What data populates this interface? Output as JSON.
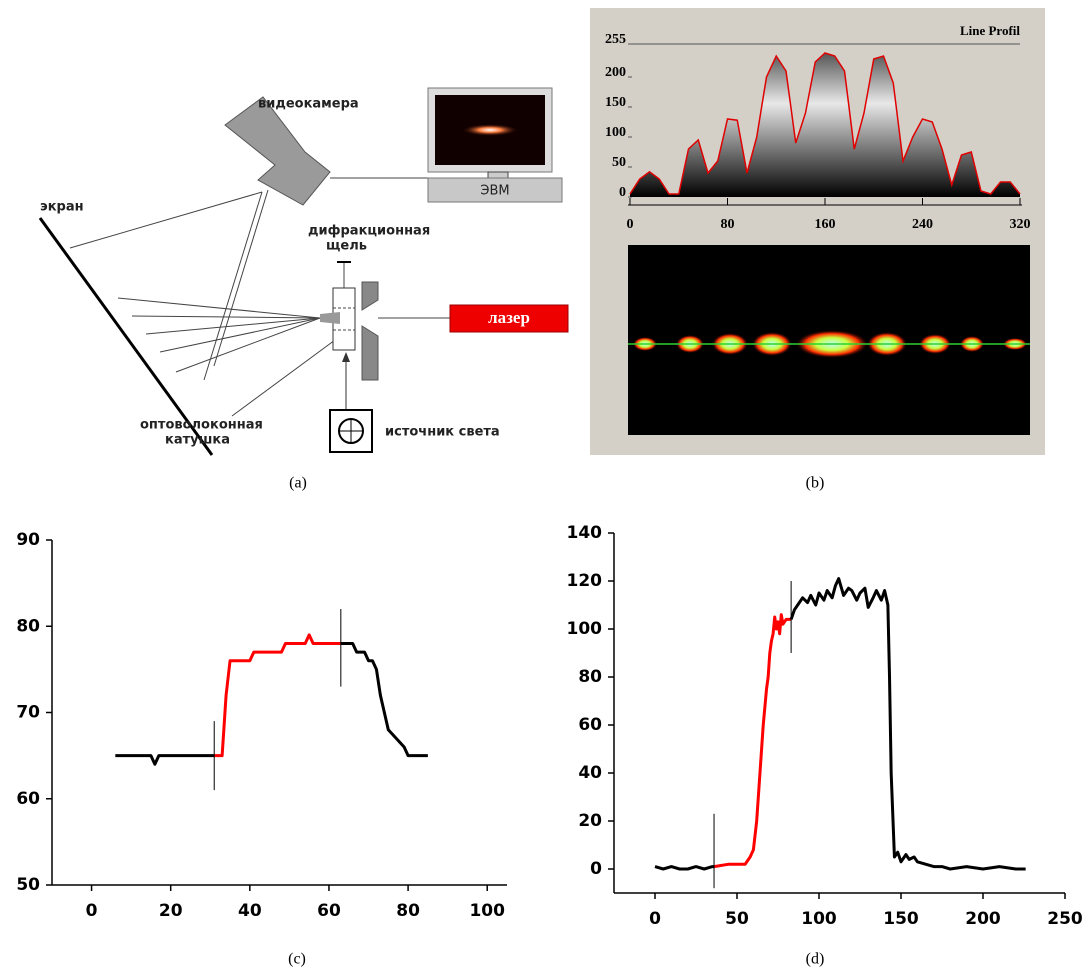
{
  "diagram": {
    "camera": "видеокамера",
    "screen": "экран",
    "computer": "ЭВМ",
    "slit": [
      "дифракционная",
      "щель"
    ],
    "laser": "лазер",
    "fiber_coil": [
      "оптоволоконная",
      "катушка"
    ],
    "light_source": "источник света"
  },
  "captions": [
    "(a)",
    "(b)",
    "(c)",
    "(d)"
  ],
  "chart_data": [
    {
      "type": "area",
      "title": "Line Profil",
      "color": "#e00000",
      "xlim": [
        0,
        320
      ],
      "ylim": [
        0,
        255
      ],
      "xticks": [
        0,
        80,
        160,
        240,
        320
      ],
      "yticks": [
        0,
        50,
        100,
        150,
        200,
        255
      ],
      "series": [
        {
          "x": [
            0,
            8,
            16,
            24,
            32,
            40,
            48,
            56,
            64,
            72,
            80,
            88,
            96,
            104,
            112,
            120,
            128,
            136,
            144,
            152,
            160,
            168,
            176,
            184,
            192,
            200,
            208,
            216,
            224,
            232,
            240,
            248,
            256,
            264,
            272,
            280,
            288,
            296,
            304,
            312,
            320
          ],
          "values": [
            5,
            30,
            42,
            30,
            5,
            5,
            80,
            95,
            40,
            60,
            130,
            128,
            40,
            100,
            200,
            235,
            210,
            90,
            140,
            225,
            240,
            235,
            210,
            80,
            140,
            230,
            235,
            190,
            60,
            100,
            130,
            125,
            80,
            20,
            70,
            75,
            10,
            5,
            25,
            25,
            5
          ]
        }
      ]
    },
    {
      "type": "line",
      "xlim": [
        -10,
        105
      ],
      "ylim": [
        50,
        90
      ],
      "xticks": [
        0,
        20,
        40,
        60,
        80,
        100
      ],
      "yticks": [
        50,
        60,
        70,
        80,
        90
      ],
      "series": [
        {
          "color": "#000000",
          "x": [
            6,
            15,
            16,
            17,
            31
          ],
          "values": [
            65,
            65,
            64,
            65,
            65
          ]
        },
        {
          "color": "#ff0000",
          "x": [
            31,
            33,
            34,
            35,
            40,
            41,
            48,
            49,
            54,
            55,
            56,
            63
          ],
          "values": [
            65,
            65,
            72,
            76,
            76,
            77,
            77,
            78,
            78,
            79,
            78,
            78
          ]
        },
        {
          "color": "#000000",
          "x": [
            63,
            66,
            67,
            69,
            70,
            71,
            72,
            73,
            75,
            77,
            79,
            80,
            85
          ],
          "values": [
            78,
            78,
            77,
            77,
            76,
            76,
            75,
            72,
            68,
            67,
            66,
            65,
            65
          ]
        }
      ],
      "markers": [
        {
          "x": 31,
          "y": [
            61,
            69
          ]
        },
        {
          "x": 63,
          "y": [
            73,
            82
          ]
        }
      ]
    },
    {
      "type": "line",
      "xlim": [
        -25,
        250
      ],
      "ylim": [
        -10,
        140
      ],
      "xticks": [
        0,
        50,
        100,
        150,
        200,
        250
      ],
      "yticks": [
        0,
        20,
        40,
        60,
        80,
        100,
        120,
        140
      ],
      "series": [
        {
          "color": "#000000",
          "x": [
            0,
            5,
            10,
            15,
            20,
            25,
            30,
            35,
            36
          ],
          "values": [
            1,
            0,
            1,
            0,
            0,
            1,
            0,
            1,
            1
          ]
        },
        {
          "color": "#ff0000",
          "x": [
            36,
            45,
            55,
            58,
            60,
            62,
            64,
            66,
            68,
            69,
            70,
            71,
            72,
            73,
            74,
            75,
            76,
            77,
            78,
            80,
            83
          ],
          "values": [
            1,
            2,
            2,
            5,
            8,
            20,
            40,
            60,
            75,
            80,
            90,
            95,
            98,
            105,
            100,
            103,
            98,
            106,
            102,
            104,
            104
          ]
        },
        {
          "color": "#000000",
          "x": [
            83,
            85,
            87,
            90,
            93,
            95,
            98,
            100,
            103,
            105,
            108,
            110,
            112,
            115,
            118,
            120,
            123,
            125,
            128,
            130,
            133,
            135,
            138,
            140,
            142,
            143,
            144,
            146,
            148,
            150,
            153,
            155,
            158,
            160,
            165,
            170,
            175,
            180,
            190,
            200,
            210,
            220,
            226
          ],
          "values": [
            104,
            108,
            110,
            113,
            111,
            114,
            110,
            115,
            112,
            116,
            113,
            118,
            121,
            114,
            117,
            116,
            112,
            115,
            117,
            109,
            113,
            116,
            112,
            116,
            110,
            80,
            40,
            5,
            7,
            3,
            6,
            4,
            5,
            3,
            2,
            1,
            1,
            0,
            1,
            0,
            1,
            0,
            0
          ]
        }
      ],
      "markers": [
        {
          "x": 36,
          "y": [
            -8,
            23
          ]
        },
        {
          "x": 83,
          "y": [
            90,
            120
          ]
        }
      ]
    }
  ]
}
